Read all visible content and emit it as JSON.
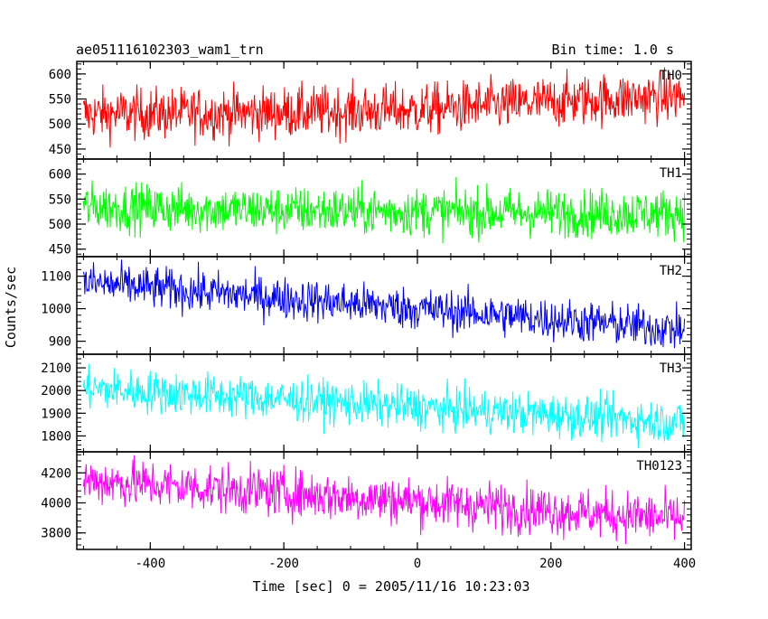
{
  "chart_data": {
    "type": "line",
    "title": "ae051116102303_wam1_trn",
    "bin_time": "Bin time: 1.0 s",
    "xlabel": "Time [sec] 0 = 2005/11/16 10:23:03",
    "ylabel": "Counts/sec",
    "xlim": [
      -510,
      410
    ],
    "xticks": [
      "-400",
      "-200",
      "0",
      "200",
      "400"
    ],
    "xtick_values": [
      -400,
      -200,
      0,
      200,
      400
    ],
    "x_data_range": [
      -500,
      400
    ],
    "grid": false,
    "panels": [
      {
        "name": "TH0",
        "color": "#ff0000",
        "ylim": [
          430,
          625
        ],
        "yticks": [
          "450",
          "500",
          "550",
          "600"
        ],
        "ytick_values": [
          450,
          500,
          550,
          600
        ],
        "trend": {
          "x": [
            -500,
            -250,
            0,
            250,
            400
          ],
          "y": [
            520,
            522,
            528,
            548,
            556
          ]
        },
        "noise_amplitude": 30
      },
      {
        "name": "TH1",
        "color": "#00ff00",
        "ylim": [
          435,
          630
        ],
        "yticks": [
          "450",
          "500",
          "550",
          "600"
        ],
        "ytick_values": [
          450,
          500,
          550,
          600
        ],
        "trend": {
          "x": [
            -500,
            -250,
            0,
            250,
            400
          ],
          "y": [
            535,
            528,
            525,
            522,
            522
          ]
        },
        "noise_amplitude": 28
      },
      {
        "name": "TH2",
        "color": "#0000ff",
        "ylim": [
          860,
          1160
        ],
        "yticks": [
          "900",
          "1000",
          "1100"
        ],
        "ytick_values": [
          900,
          1000,
          1100
        ],
        "trend": {
          "x": [
            -500,
            -250,
            0,
            250,
            400
          ],
          "y": [
            1080,
            1040,
            1000,
            960,
            935
          ]
        },
        "noise_amplitude": 38
      },
      {
        "name": "TH3",
        "color": "#00ffff",
        "ylim": [
          1730,
          2160
        ],
        "yticks": [
          "1800",
          "1900",
          "2000",
          "2100"
        ],
        "ytick_values": [
          1800,
          1900,
          2000,
          2100
        ],
        "trend": {
          "x": [
            -500,
            -250,
            0,
            250,
            400
          ],
          "y": [
            2010,
            1970,
            1925,
            1885,
            1860
          ]
        },
        "noise_amplitude": 55
      },
      {
        "name": "TH0123",
        "color": "#ff00ff",
        "ylim": [
          3690,
          4340
        ],
        "yticks": [
          "3800",
          "4000",
          "4200"
        ],
        "ytick_values": [
          3800,
          4000,
          4200
        ],
        "trend": {
          "x": [
            -500,
            -250,
            0,
            250,
            400
          ],
          "y": [
            4150,
            4080,
            4010,
            3935,
            3890
          ]
        },
        "noise_amplitude": 95
      }
    ]
  }
}
